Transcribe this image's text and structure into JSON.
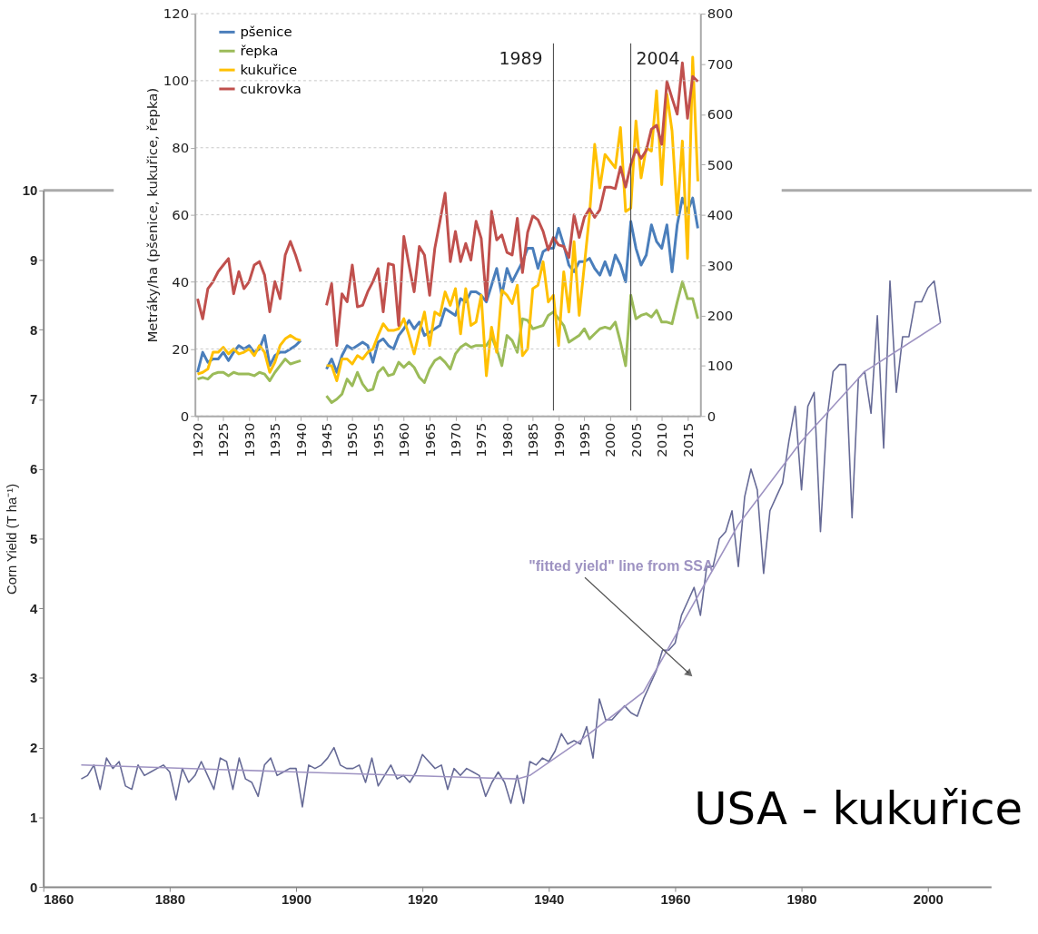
{
  "chart_data": [
    {
      "type": "line",
      "ylabel": "Metráky/ha (pšenice, kukuřice, řepka)",
      "xlim": [
        1919.5,
        2017.5
      ],
      "ylim": [
        0,
        120
      ],
      "yticks": [
        0,
        20,
        40,
        60,
        80,
        100,
        120
      ],
      "y2lim": [
        0,
        800
      ],
      "y2ticks": [
        0,
        100,
        200,
        300,
        400,
        500,
        600,
        700,
        800
      ],
      "xticks": [
        1920,
        1925,
        1930,
        1935,
        1940,
        1945,
        1950,
        1955,
        1960,
        1965,
        1970,
        1975,
        1980,
        1985,
        1990,
        1995,
        2000,
        2005,
        2010,
        2015
      ],
      "grid": "y",
      "legend": "top left",
      "x": [
        1920,
        1921,
        1922,
        1923,
        1924,
        1925,
        1926,
        1927,
        1928,
        1929,
        1930,
        1931,
        1932,
        1933,
        1934,
        1935,
        1936,
        1937,
        1938,
        1939,
        1940,
        1941,
        1942,
        1943,
        1944,
        1945,
        1946,
        1947,
        1948,
        1949,
        1950,
        1951,
        1952,
        1953,
        1954,
        1955,
        1956,
        1957,
        1958,
        1959,
        1960,
        1961,
        1962,
        1963,
        1964,
        1965,
        1966,
        1967,
        1968,
        1969,
        1970,
        1971,
        1972,
        1973,
        1974,
        1975,
        1976,
        1977,
        1978,
        1979,
        1980,
        1981,
        1982,
        1983,
        1984,
        1985,
        1986,
        1987,
        1988,
        1989,
        1990,
        1991,
        1992,
        1993,
        1994,
        1995,
        1996,
        1997,
        1998,
        1999,
        2000,
        2001,
        2002,
        2003,
        2004,
        2005,
        2006,
        2007,
        2008,
        2009,
        2010,
        2011,
        2012,
        2013,
        2014,
        2015,
        2016,
        2017
      ],
      "series": [
        {
          "name": "pšenice",
          "color": "#4a7ebb",
          "values": [
            13,
            19,
            16,
            17,
            17,
            19,
            16.5,
            19,
            21,
            20,
            21,
            19,
            20,
            24,
            15,
            18,
            19,
            19,
            20,
            21,
            22.5,
            null,
            null,
            null,
            null,
            14,
            17,
            13,
            18,
            21,
            20,
            21,
            22,
            21,
            16,
            22,
            23,
            21,
            20,
            24,
            26,
            28.5,
            26,
            28,
            24,
            25,
            26,
            27,
            32,
            31,
            30,
            35,
            34,
            37,
            37,
            36,
            34,
            39,
            44,
            36,
            44,
            40,
            43,
            46,
            50,
            50,
            44,
            49,
            50,
            50,
            56,
            51,
            45,
            43,
            46,
            46,
            47,
            44,
            42,
            46,
            42,
            48,
            45,
            40,
            58,
            50,
            45,
            48,
            57,
            52,
            50,
            57,
            43,
            57,
            65,
            61,
            65,
            56
          ]
        },
        {
          "name": "řepka",
          "color": "#9bbb59",
          "values": [
            11,
            11.5,
            11,
            12.5,
            13,
            13,
            12,
            13,
            12.5,
            12.5,
            12.5,
            12,
            13,
            12.5,
            10.5,
            13,
            15,
            17,
            15.5,
            16,
            16.5,
            null,
            null,
            null,
            null,
            6,
            4,
            5,
            6.5,
            11,
            9,
            13,
            9.5,
            7.5,
            8,
            13,
            14.5,
            12,
            12.5,
            16,
            14.5,
            16,
            14.5,
            11.5,
            10,
            14,
            16.5,
            17.5,
            16,
            14,
            18.5,
            20.5,
            21.5,
            20.5,
            21,
            21,
            21,
            23.5,
            20,
            15,
            24,
            22.5,
            19,
            29,
            28.5,
            26,
            26.5,
            27,
            30,
            31,
            29,
            27,
            22,
            23,
            24,
            26,
            23,
            24.5,
            26,
            26.5,
            26,
            28,
            22,
            15,
            36,
            29,
            30,
            30.5,
            29.5,
            31.5,
            28,
            28,
            27.5,
            34,
            40,
            35,
            35,
            29
          ]
        },
        {
          "name": "kukuřice",
          "color": "#ffc000",
          "values": [
            12.5,
            13,
            14,
            19,
            19,
            20.5,
            18.5,
            20,
            18.5,
            19,
            20,
            18,
            21,
            19,
            13,
            16,
            21,
            23,
            24,
            23,
            22.5,
            null,
            null,
            null,
            null,
            15,
            15,
            10.5,
            17,
            17,
            15.5,
            18,
            17,
            19,
            20,
            24,
            27.5,
            25.5,
            25.5,
            26,
            29,
            24,
            18.5,
            25,
            31,
            21,
            31,
            30,
            37,
            33,
            38,
            24.5,
            38,
            27,
            28,
            36,
            12,
            26.5,
            19,
            37.5,
            36,
            33.5,
            39,
            18,
            20,
            38,
            39,
            46,
            34,
            36,
            21,
            43,
            31,
            52,
            30,
            45,
            60,
            81,
            68,
            78,
            76,
            74,
            86,
            61,
            62,
            88,
            71,
            80,
            79,
            97,
            69,
            96,
            85,
            60,
            82,
            47,
            107,
            70
          ]
        },
        {
          "name": "cukrovka",
          "color": "#c0504d",
          "axis": "y2",
          "values": [
            233,
            193,
            253,
            267,
            287,
            300,
            313,
            243,
            287,
            253,
            267,
            300,
            307,
            280,
            207,
            267,
            233,
            320,
            347,
            320,
            287,
            null,
            null,
            null,
            null,
            220,
            263,
            140,
            243,
            227,
            300,
            217,
            220,
            247,
            267,
            293,
            207,
            303,
            300,
            180,
            357,
            300,
            247,
            337,
            320,
            240,
            333,
            387,
            443,
            307,
            367,
            307,
            343,
            310,
            387,
            353,
            230,
            407,
            350,
            360,
            325,
            320,
            393,
            285,
            365,
            398,
            390,
            367,
            330,
            355,
            340,
            337,
            315,
            400,
            355,
            395,
            412,
            395,
            410,
            455,
            455,
            452,
            495,
            455,
            500,
            530,
            512,
            528,
            570,
            578,
            540,
            665,
            632,
            600,
            702,
            592,
            675,
            665
          ]
        }
      ],
      "ref_lines": [
        {
          "axis": "x",
          "value": 1989,
          "label": "1989",
          "color": "#404040"
        },
        {
          "axis": "x",
          "value": 2004,
          "label": "2004",
          "color": "#404040"
        }
      ]
    },
    {
      "type": "line",
      "ylabel": "Corn Yield (T ha⁻¹)",
      "xlim": [
        1860,
        2010
      ],
      "ylim": [
        0,
        10
      ],
      "xticks": [
        1860,
        1880,
        1900,
        1920,
        1940,
        1960,
        1980,
        2000
      ],
      "yticks": [
        0,
        1,
        2,
        3,
        4,
        5,
        6,
        7,
        8,
        9,
        10
      ],
      "grid": false,
      "legend": false,
      "series": [
        {
          "color": "#666a96",
          "x": [
            1866,
            1867,
            1868,
            1869,
            1870,
            1871,
            1872,
            1873,
            1874,
            1875,
            1876,
            1877,
            1878,
            1879,
            1880,
            1881,
            1882,
            1883,
            1884,
            1885,
            1886,
            1887,
            1888,
            1889,
            1890,
            1891,
            1892,
            1893,
            1894,
            1895,
            1896,
            1897,
            1898,
            1899,
            1900,
            1901,
            1902,
            1903,
            1904,
            1905,
            1906,
            1907,
            1908,
            1909,
            1910,
            1911,
            1912,
            1913,
            1914,
            1915,
            1916,
            1917,
            1918,
            1919,
            1920,
            1921,
            1922,
            1923,
            1924,
            1925,
            1926,
            1927,
            1928,
            1929,
            1930,
            1931,
            1932,
            1933,
            1934,
            1935,
            1936,
            1937,
            1938,
            1939,
            1940,
            1941,
            1942,
            1943,
            1944,
            1945,
            1946,
            1947,
            1948,
            1949,
            1950,
            1951,
            1952,
            1953,
            1954,
            1955,
            1956,
            1957,
            1958,
            1959,
            1960,
            1961,
            1962,
            1963,
            1964,
            1965,
            1966,
            1967,
            1968,
            1969,
            1970,
            1971,
            1972,
            1973,
            1974,
            1975,
            1976,
            1977,
            1978,
            1979,
            1980,
            1981,
            1982,
            1983,
            1984,
            1985,
            1986,
            1987,
            1988,
            1989,
            1990,
            1991,
            1992,
            1993,
            1994,
            1995,
            1996,
            1997,
            1998,
            1999,
            2000,
            2001,
            2002
          ],
          "values": [
            1.55,
            1.6,
            1.75,
            1.4,
            1.85,
            1.7,
            1.8,
            1.45,
            1.4,
            1.75,
            1.6,
            1.65,
            1.7,
            1.75,
            1.65,
            1.25,
            1.7,
            1.5,
            1.6,
            1.8,
            1.6,
            1.4,
            1.85,
            1.8,
            1.4,
            1.85,
            1.55,
            1.5,
            1.3,
            1.75,
            1.85,
            1.6,
            1.65,
            1.7,
            1.7,
            1.15,
            1.75,
            1.7,
            1.75,
            1.85,
            2.0,
            1.75,
            1.7,
            1.7,
            1.75,
            1.5,
            1.85,
            1.45,
            1.6,
            1.75,
            1.55,
            1.6,
            1.5,
            1.65,
            1.9,
            1.8,
            1.7,
            1.75,
            1.4,
            1.7,
            1.6,
            1.7,
            1.65,
            1.6,
            1.3,
            1.5,
            1.65,
            1.5,
            1.2,
            1.6,
            1.2,
            1.8,
            1.75,
            1.85,
            1.8,
            1.95,
            2.2,
            2.05,
            2.1,
            2.05,
            2.3,
            1.85,
            2.7,
            2.4,
            2.4,
            2.5,
            2.6,
            2.5,
            2.45,
            2.7,
            2.9,
            3.1,
            3.4,
            3.4,
            3.5,
            3.9,
            4.1,
            4.3,
            3.9,
            4.6,
            4.6,
            5.0,
            5.1,
            5.4,
            4.6,
            5.6,
            6.0,
            5.7,
            4.5,
            5.4,
            5.6,
            5.8,
            6.4,
            6.9,
            5.7,
            6.9,
            7.1,
            5.1,
            6.7,
            7.4,
            7.5,
            7.5,
            5.3,
            7.3,
            7.4,
            6.8,
            8.2,
            6.3,
            8.7,
            7.1,
            7.9,
            7.9,
            8.4,
            8.4,
            8.6,
            8.7,
            8.1
          ]
        },
        {
          "color": "#9e93c2",
          "x": [
            1866,
            1900,
            1935,
            1937,
            1945,
            1955,
            1960,
            1965,
            1970,
            1980,
            1990,
            2002
          ],
          "values": [
            1.75,
            1.65,
            1.55,
            1.6,
            2.1,
            2.8,
            3.6,
            4.4,
            5.2,
            6.4,
            7.4,
            8.1
          ]
        }
      ],
      "annotations": [
        "\"fitted yield\" line from SSA",
        "USA - kukuřice"
      ]
    }
  ]
}
